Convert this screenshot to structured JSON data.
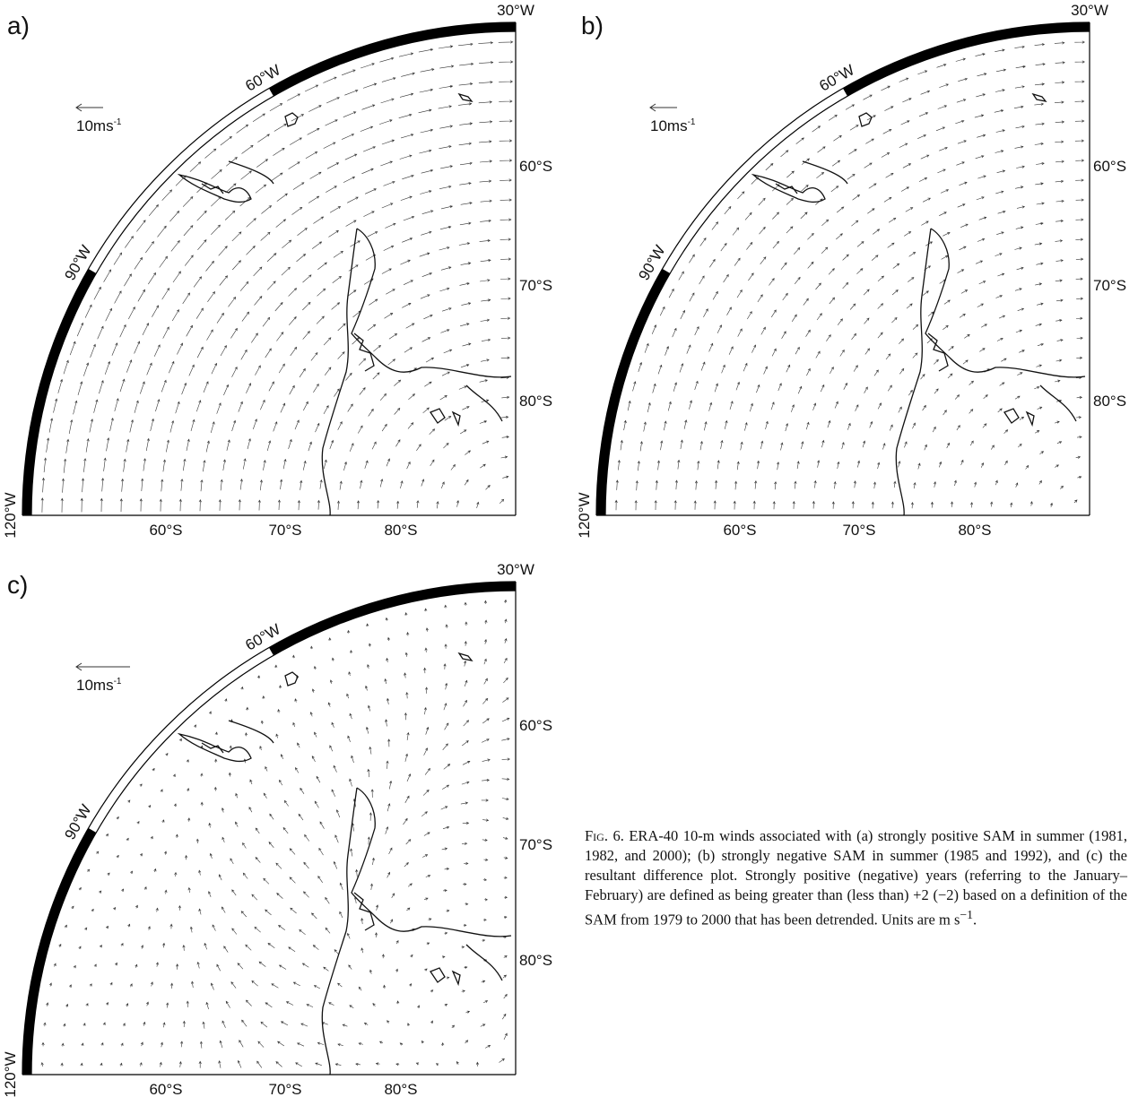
{
  "panels": [
    {
      "label": "a)",
      "longitude_labels": [
        "30°W",
        "60°W",
        "90°W",
        "120°W"
      ],
      "latitude_labels_bottom": [
        "60°S",
        "70°S",
        "80°S"
      ],
      "latitude_labels_right": [
        "60°S",
        "70°S",
        "80°S"
      ],
      "scale_label": "10ms",
      "scale_exponent": "-1"
    },
    {
      "label": "b)",
      "longitude_labels": [
        "30°W",
        "60°W",
        "90°W",
        "120°W"
      ],
      "latitude_labels_bottom": [
        "60°S",
        "70°S",
        "80°S"
      ],
      "latitude_labels_right": [
        "60°S",
        "70°S",
        "80°S"
      ],
      "scale_label": "10ms",
      "scale_exponent": "-1"
    },
    {
      "label": "c)",
      "longitude_labels": [
        "30°W",
        "60°W",
        "90°W",
        "120°W"
      ],
      "latitude_labels_bottom": [
        "60°S",
        "70°S",
        "80°S"
      ],
      "latitude_labels_right": [
        "60°S",
        "70°S",
        "80°S"
      ],
      "scale_label": "10ms",
      "scale_exponent": "-1"
    }
  ],
  "caption": {
    "label": "Fig. 6.",
    "text": "ERA-40 10-m winds associated with (a) strongly positive SAM in summer (1981, 1982, and 2000); (b) strongly negative SAM in summer (1985 and 1992), and (c) the resultant difference plot. Strongly positive (negative) years (referring to the January–February) are defined as being greater than (less than) +2 (−2) based on a definition of the SAM from 1979 to 2000 that has been detrended. Units are m s",
    "superscript": "−1",
    "end": "."
  }
}
